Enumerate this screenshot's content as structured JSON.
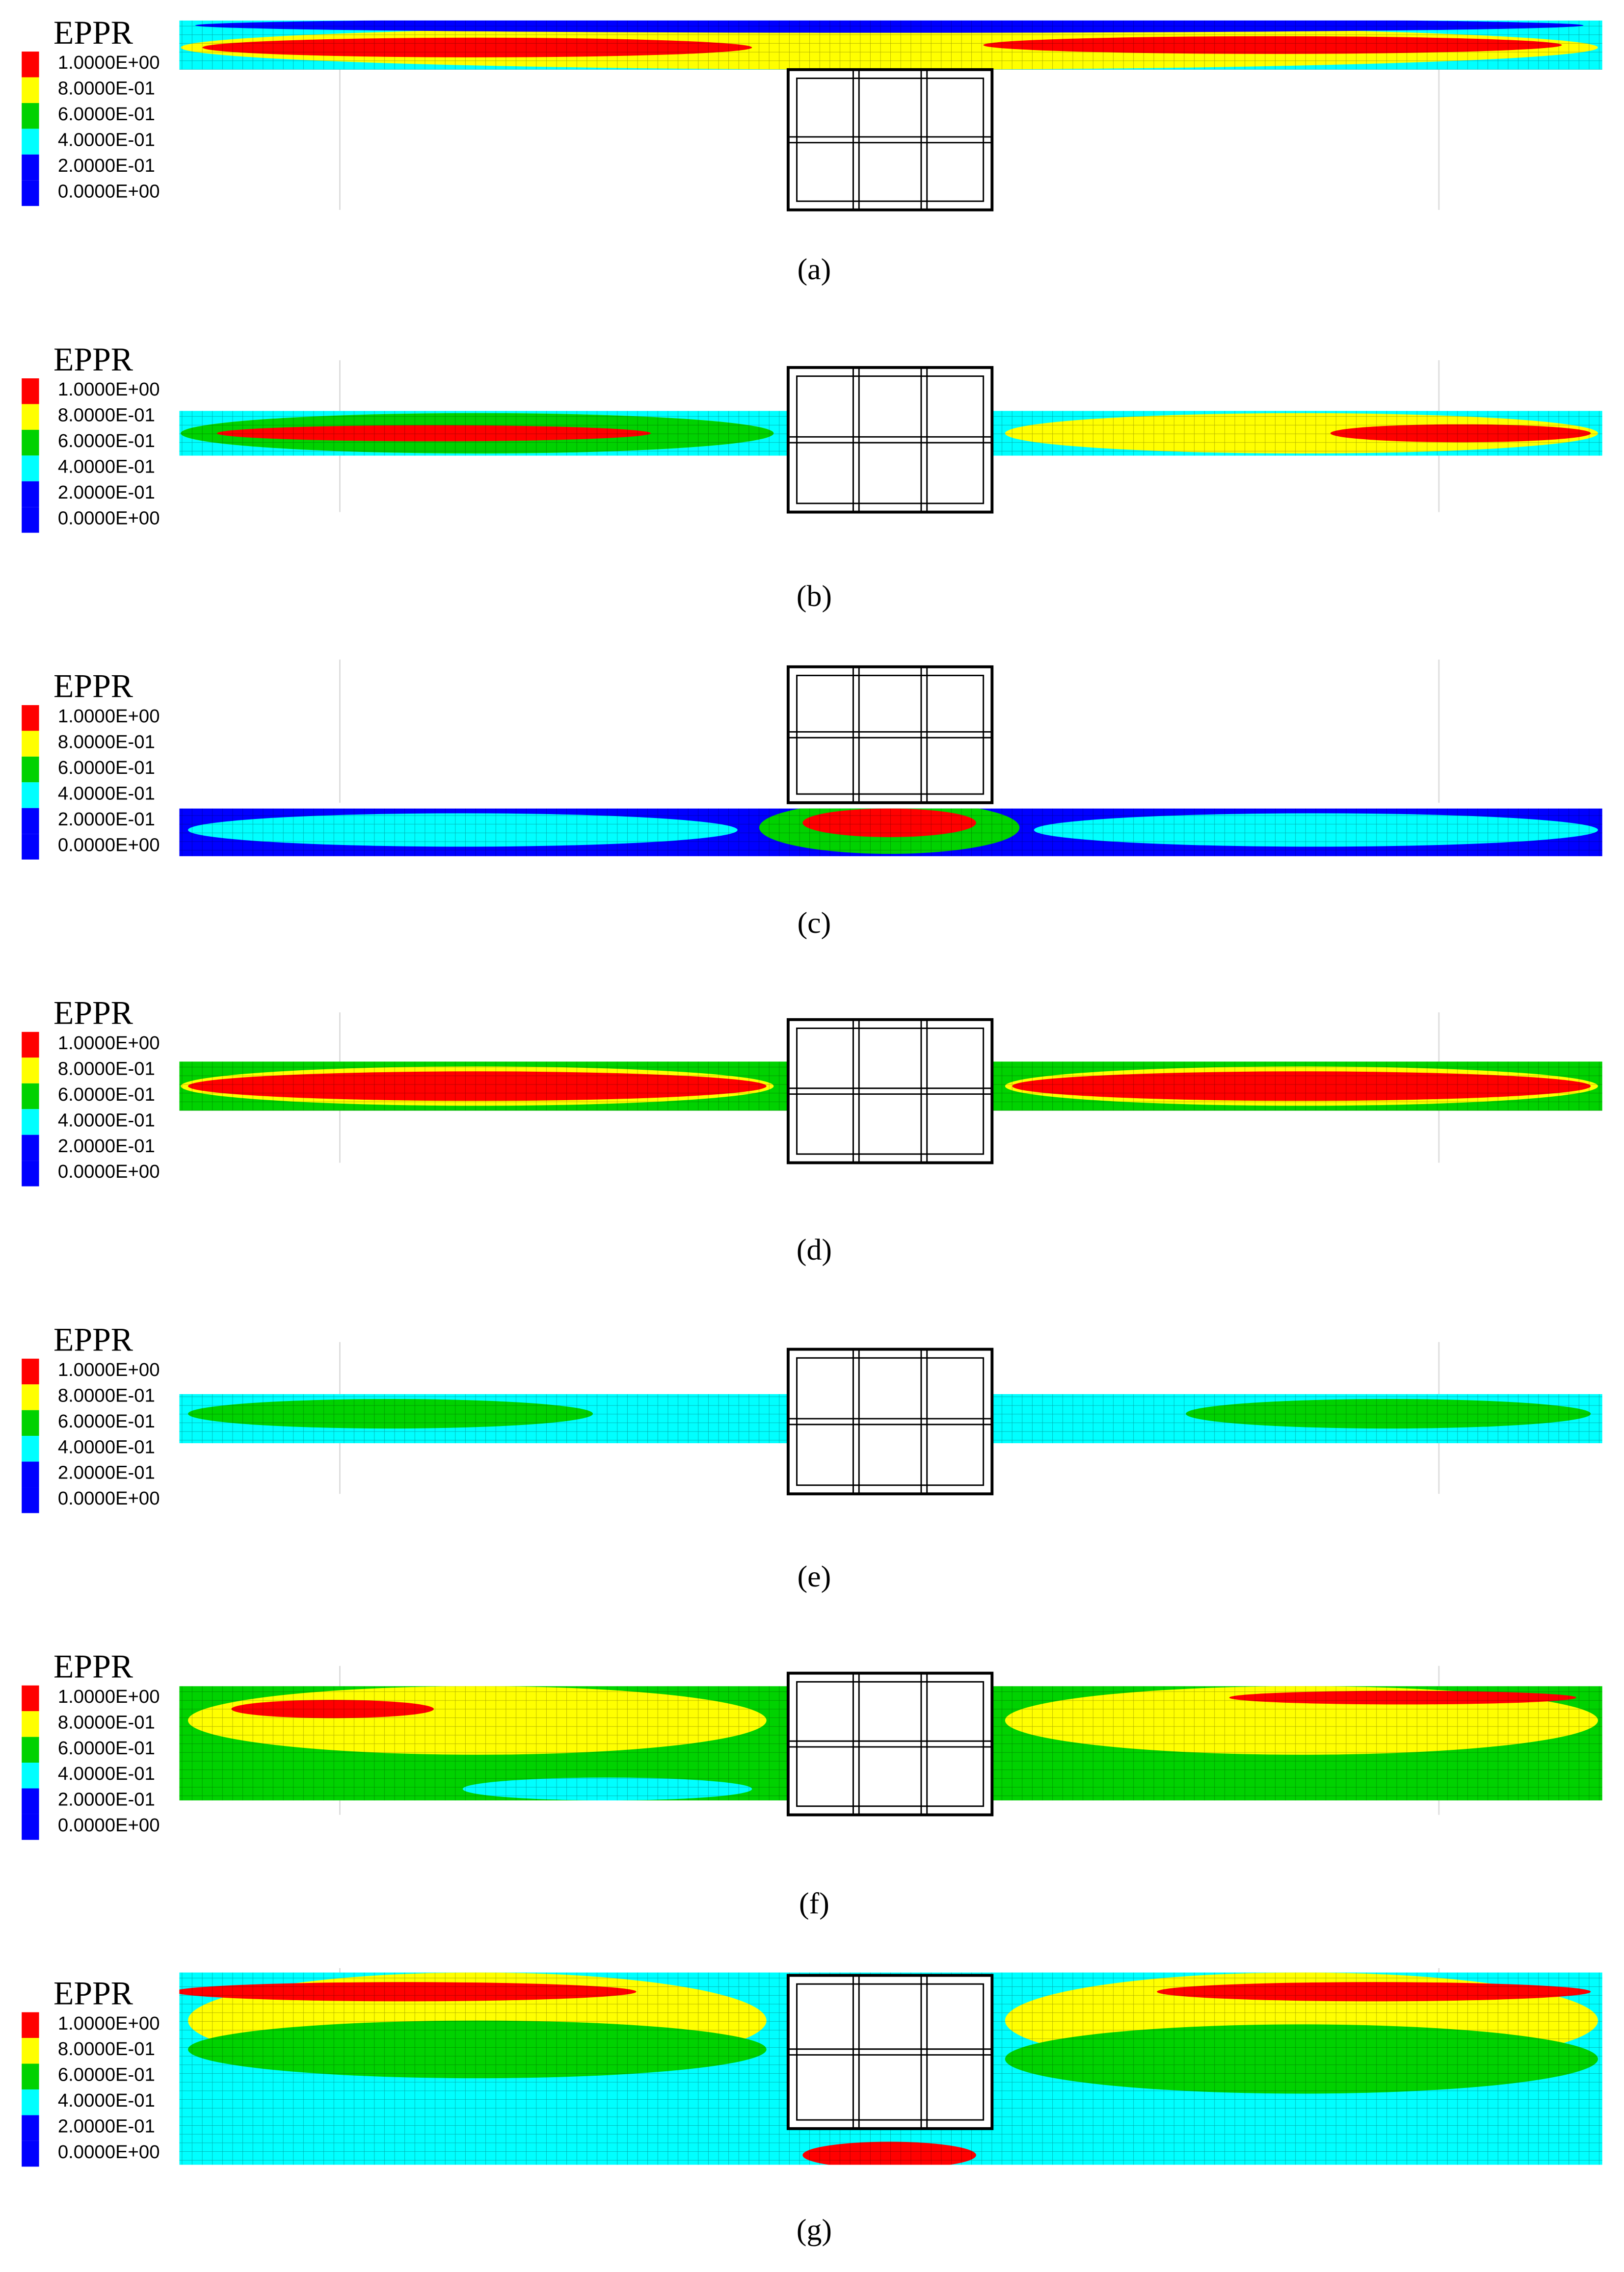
{
  "panels": [
    {
      "title": "EPPR",
      "legend": [
        "1.0000E+00",
        "8.0000E-01",
        "6.0000E-01",
        "4.0000E-01",
        "2.0000E-01",
        "0.0000E+00"
      ],
      "caption": "(a)"
    },
    {
      "title": "EPPR",
      "legend": [
        "1.0000E+00",
        "8.0000E-01",
        "6.0000E-01",
        "4.0000E-01",
        "2.0000E-01",
        "0.0000E+00"
      ],
      "caption": "(b)"
    },
    {
      "title": "EPPR",
      "legend": [
        "1.0000E+00",
        "8.0000E-01",
        "6.0000E-01",
        "4.0000E-01",
        "2.0000E-01",
        "0.0000E+00"
      ],
      "caption": "(c)"
    },
    {
      "title": "EPPR",
      "legend": [
        "1.0000E+00",
        "8.0000E-01",
        "6.0000E-01",
        "4.0000E-01",
        "2.0000E-01",
        "0.0000E+00"
      ],
      "caption": "(d)"
    },
    {
      "title": "EPPR",
      "legend": [
        "1.0000E+00",
        "8.0000E-01",
        "6.0000E-01",
        "4.0000E-01",
        "2.0000E-01",
        "0.0000E+00"
      ],
      "caption": "(e)"
    },
    {
      "title": "EPPR",
      "legend": [
        "1.0000E+00",
        "8.0000E-01",
        "6.0000E-01",
        "4.0000E-01",
        "2.0000E-01",
        "0.0000E+00"
      ],
      "caption": "(f)"
    },
    {
      "title": "EPPR",
      "legend": [
        "1.0000E+00",
        "8.0000E-01",
        "6.0000E-01",
        "4.0000E-01",
        "2.0000E-01",
        "0.0000E+00"
      ],
      "caption": "(g)"
    }
  ]
}
